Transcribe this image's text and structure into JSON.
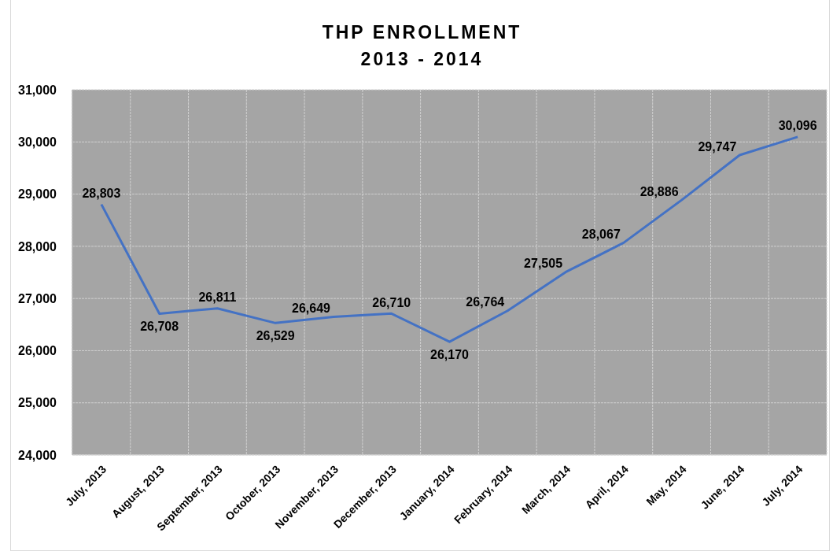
{
  "chart_data": {
    "type": "line",
    "title": "THP ENROLLMENT\n2013 - 2014",
    "categories": [
      "July, 2013",
      "August, 2013",
      "September, 2013",
      "October, 2013",
      "November, 2013",
      "December, 2013",
      "January, 2014",
      "February, 2014",
      "March, 2014",
      "April, 2014",
      "May, 2014",
      "June, 2014",
      "July, 2014"
    ],
    "series": [
      {
        "color": "#4472c4",
        "values": [
          28803,
          26708,
          26811,
          26529,
          26649,
          26710,
          26170,
          26764,
          27505,
          28067,
          28886,
          29747,
          30096
        ],
        "value_labels": [
          "28,803",
          "26,708",
          "26,811",
          "26,529",
          "26,649",
          "26,710",
          "26,170",
          "26,764",
          "27,505",
          "28,067",
          "28,886",
          "29,747",
          "30,096"
        ]
      }
    ],
    "ylim": [
      24000,
      31000
    ],
    "yticks": [
      {
        "value": 24000,
        "label": "24,000"
      },
      {
        "value": 25000,
        "label": "25,000"
      },
      {
        "value": 26000,
        "label": "26,000"
      },
      {
        "value": 27000,
        "label": "27,000"
      },
      {
        "value": 28000,
        "label": "28,000"
      },
      {
        "value": 29000,
        "label": "29,000"
      },
      {
        "value": 30000,
        "label": "30,000"
      },
      {
        "value": 31000,
        "label": "31,000"
      }
    ],
    "grid": true,
    "line_style": "solid"
  }
}
